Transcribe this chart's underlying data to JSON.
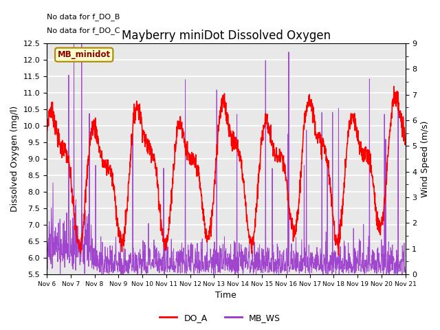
{
  "title": "Mayberry miniDot Dissolved Oxygen",
  "xlabel": "Time",
  "ylabel_left": "Dissolved Oxygen (mg/l)",
  "ylabel_right": "Wind Speed (m/s)",
  "annotation_lines": [
    "No data for f_DO_B",
    "No data for f_DO_C"
  ],
  "legend_box_label": "MB_minidot",
  "legend_entries": [
    "DO_A",
    "MB_WS"
  ],
  "legend_colors": [
    "#ff0000",
    "#9933cc"
  ],
  "do_color": "#ff0000",
  "ws_color": "#9933cc",
  "ylim_left": [
    5.5,
    12.5
  ],
  "ylim_right": [
    0.0,
    9.0
  ],
  "yticks_left": [
    5.5,
    6.0,
    6.5,
    7.0,
    7.5,
    8.0,
    8.5,
    9.0,
    9.5,
    10.0,
    10.5,
    11.0,
    11.5,
    12.0,
    12.5
  ],
  "yticks_right": [
    0.0,
    1.0,
    2.0,
    3.0,
    4.0,
    5.0,
    6.0,
    7.0,
    8.0,
    9.0
  ],
  "n_days": 15,
  "xtick_labels": [
    "Nov 6",
    "Nov 7",
    "Nov 8",
    "Nov 9",
    "Nov 10",
    "Nov 11",
    "Nov 12",
    "Nov 13",
    "Nov 14",
    "Nov 15",
    "Nov 16",
    "Nov 17",
    "Nov 18",
    "Nov 19",
    "Nov 20",
    "Nov 21"
  ],
  "bg_color": "#e8e8e8",
  "grid_color": "#ffffff",
  "fig_bg": "#ffffff",
  "annotation_fontsize": 8,
  "title_fontsize": 12,
  "label_fontsize": 9,
  "tick_fontsize": 8
}
